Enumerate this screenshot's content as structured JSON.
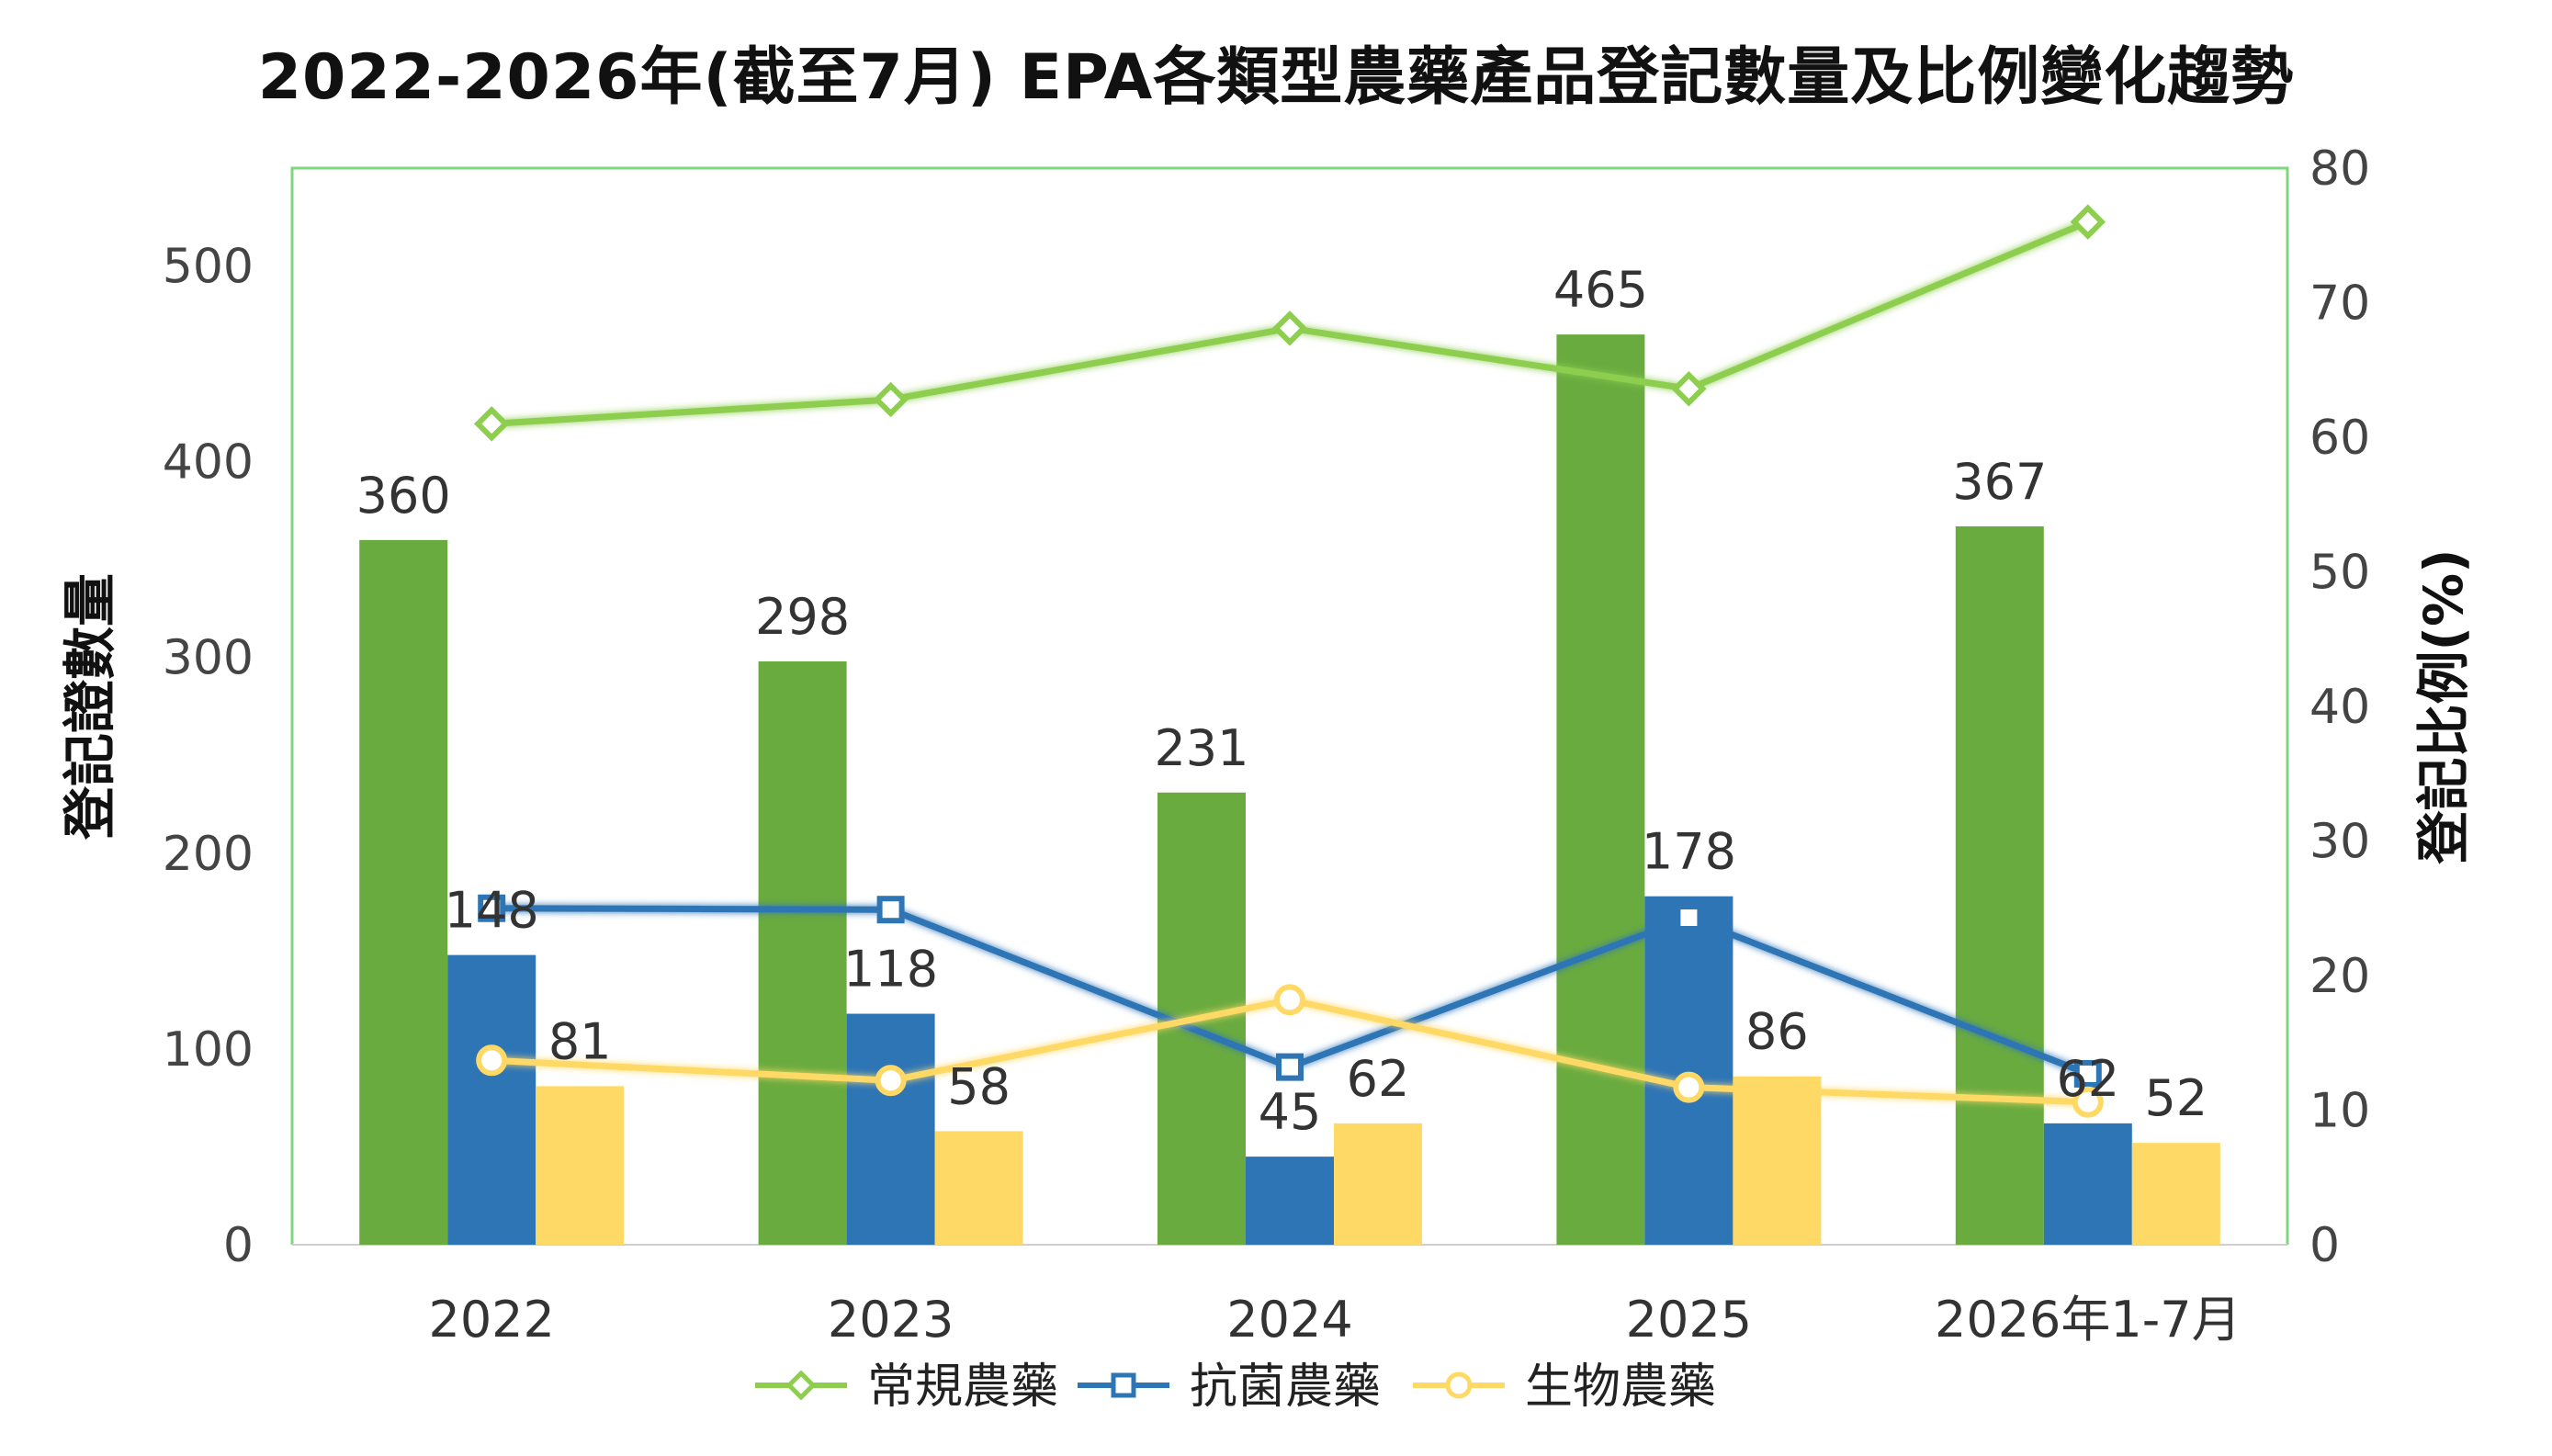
{
  "chart_data": {
    "type": "bar",
    "title": "2022-2026年(截至7月) EPA各類型農藥產品登記數量及比例變化趨勢",
    "categories": [
      "2022",
      "2023",
      "2024",
      "2025",
      "2026年1-7月"
    ],
    "series": [
      {
        "name": "常規農藥",
        "kind": "bar",
        "axis": "left",
        "color": "#6aab3f",
        "values": [
          360,
          298,
          231,
          465,
          367
        ]
      },
      {
        "name": "抗菌農藥",
        "kind": "bar",
        "axis": "left",
        "color": "#2e75b6",
        "values": [
          148,
          118,
          45,
          178,
          62
        ]
      },
      {
        "name": "生物農藥",
        "kind": "bar",
        "axis": "left",
        "color": "#ffd966",
        "values": [
          81,
          58,
          62,
          86,
          52
        ]
      },
      {
        "name": "常規農藥",
        "kind": "line",
        "axis": "right",
        "color": "#8dce4f",
        "marker": "diamond",
        "values": [
          61.0,
          62.8,
          68.1,
          63.6,
          76.0
        ]
      },
      {
        "name": "抗菌農藥",
        "kind": "line",
        "axis": "right",
        "color": "#2e75b6",
        "marker": "square",
        "values": [
          25.0,
          24.9,
          13.2,
          24.3,
          12.7
        ]
      },
      {
        "name": "生物農藥",
        "kind": "line",
        "axis": "right",
        "color": "#ffd966",
        "marker": "circle",
        "values": [
          13.7,
          12.2,
          18.2,
          11.7,
          10.6
        ]
      }
    ],
    "ylabel": "登記證數量",
    "ylabel_right": "登記比例(%)",
    "ylim": [
      0,
      550
    ],
    "ylim_right": [
      0,
      80
    ],
    "yticks": [
      0,
      100,
      200,
      300,
      400,
      500
    ],
    "yticks_right": [
      0,
      10,
      20,
      30,
      40,
      50,
      60,
      70,
      80
    ],
    "legend": [
      "常規農藥",
      "抗菌農藥",
      "生物農藥"
    ],
    "legend_position": "bottom",
    "grid": false,
    "plot_border_color": "#7fd67f"
  }
}
